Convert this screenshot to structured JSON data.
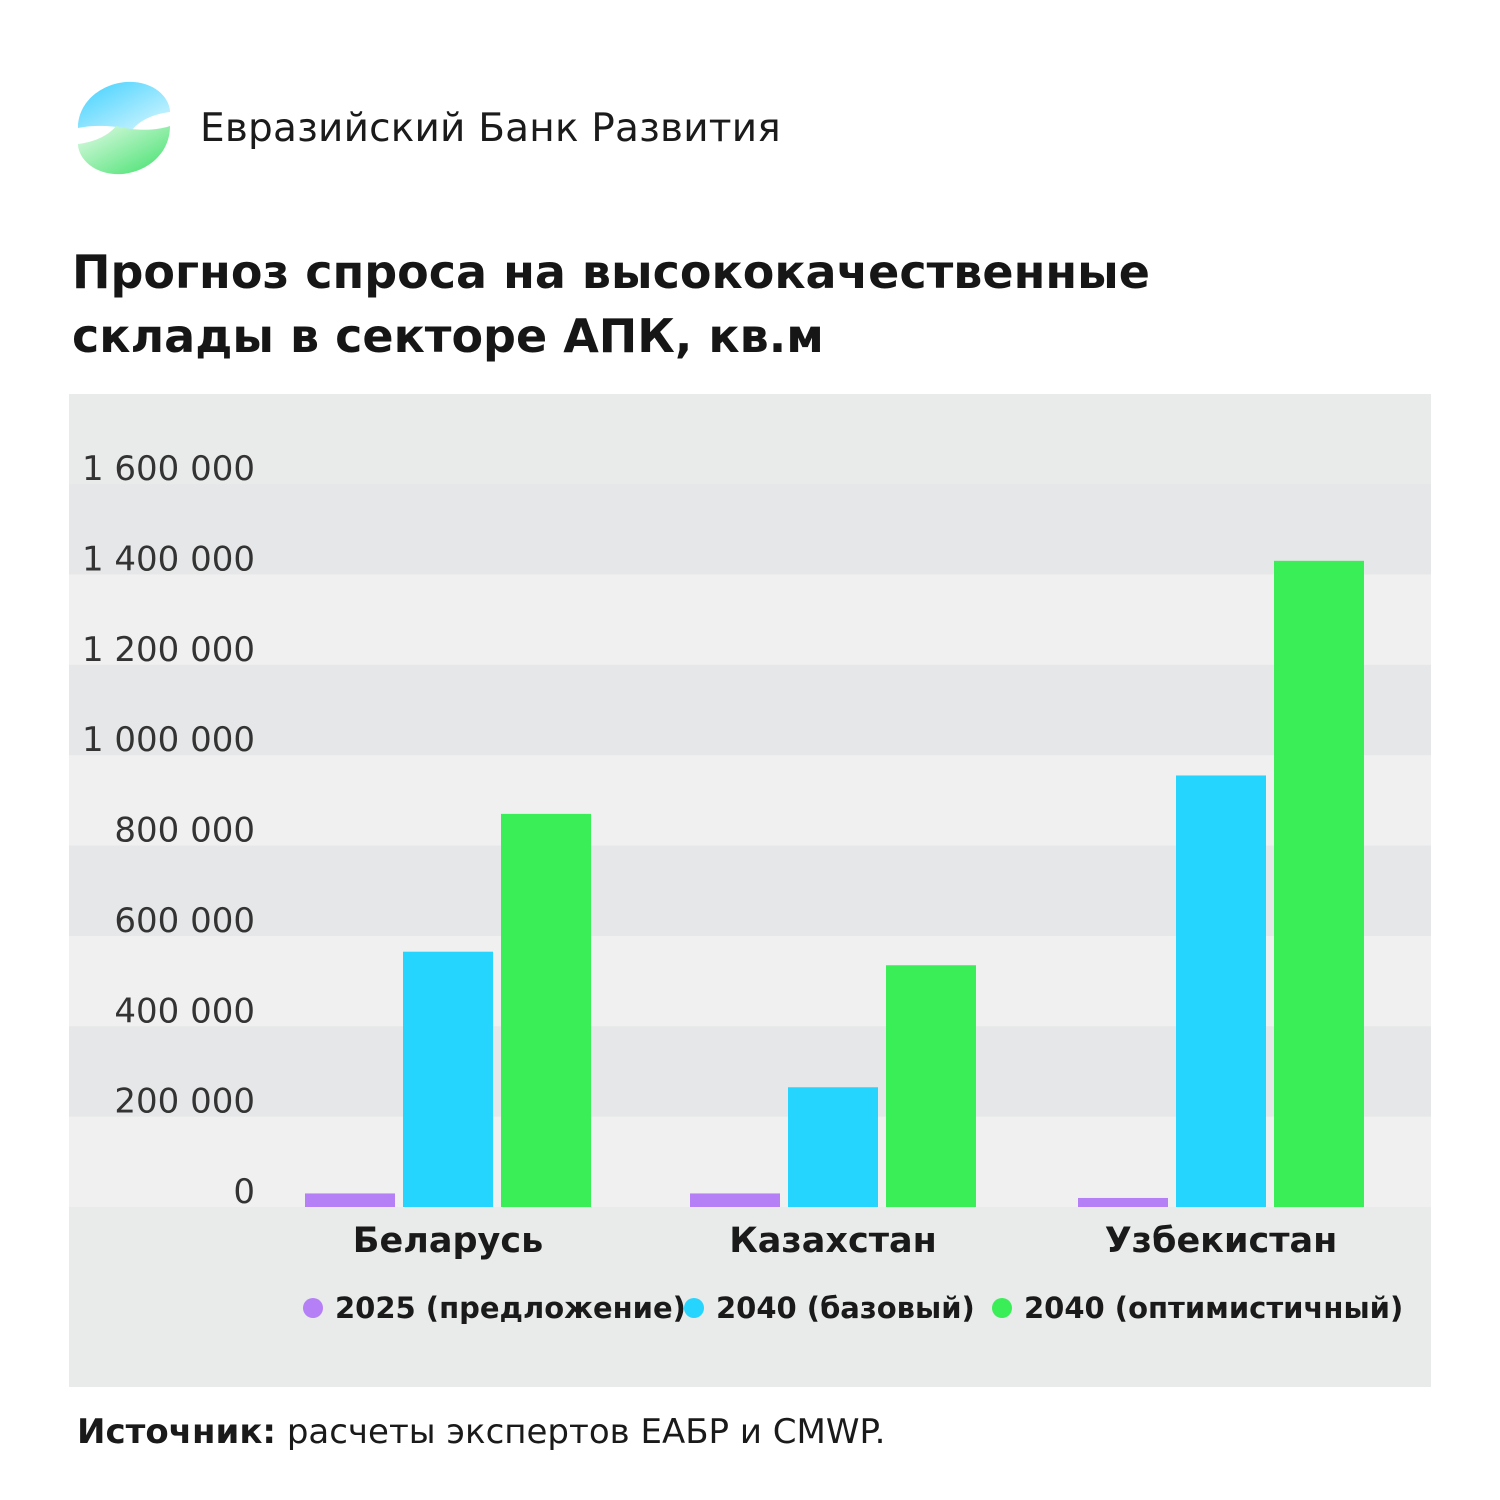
{
  "brand": {
    "name": "Евразийский Банк Развития",
    "logo_icon": "eadb-logo-icon",
    "logo_colors": [
      "#3fd0ff",
      "#3fe06a"
    ]
  },
  "title": {
    "line1": "Прогноз спроса на высококачественные",
    "line2": "склады в секторе АПК, кв.м"
  },
  "chart_data": {
    "type": "bar",
    "title": "Прогноз спроса на высококачественные склады в секторе АПК, кв.м",
    "categories": [
      "Беларусь",
      "Казахстан",
      "Узбекистан"
    ],
    "series": [
      {
        "name": "2025 (предложение)",
        "color": "#b57ff5",
        "values": [
          30000,
          30000,
          20000
        ]
      },
      {
        "name": "2040 (базовый)",
        "color": "#25d5fd",
        "values": [
          565000,
          265000,
          955000
        ]
      },
      {
        "name": "2040 (оптимистичный)",
        "color": "#3aee57",
        "values": [
          870000,
          535000,
          1430000
        ]
      }
    ],
    "yticks": [
      0,
      200000,
      400000,
      600000,
      800000,
      1000000,
      1200000,
      1400000,
      1600000
    ],
    "ytick_labels": [
      "0",
      "200 000",
      "400 000",
      "600 000",
      "800 000",
      "1 000 000",
      "1 200 000",
      "1 400 000",
      "1 600 000"
    ],
    "ylim": [
      0,
      1600000
    ],
    "xlabel": "",
    "ylabel": "",
    "legend": "bottom",
    "grid": "alternating horizontal bands",
    "background": "#e9eaea"
  },
  "source": {
    "label": "Источник:",
    "text": " расчеты экспертов ЕАБР и CMWP."
  }
}
